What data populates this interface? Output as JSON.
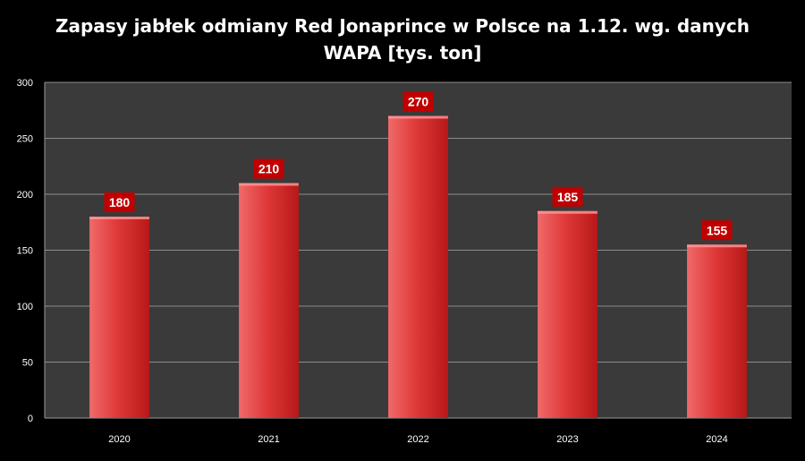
{
  "chart_data": {
    "type": "bar",
    "title": "Zapasy jabłek odmiany Red Jonaprince w Polsce na 1.12. wg. danych WAPA [tys. ton]",
    "categories": [
      "2020",
      "2021",
      "2022",
      "2023",
      "2024"
    ],
    "values": [
      180,
      210,
      270,
      185,
      155
    ],
    "data_labels": [
      "180",
      "210",
      "270",
      "185",
      "155"
    ],
    "xlabel": "",
    "ylabel": "",
    "ylim": [
      0,
      300
    ],
    "yticks": [
      0,
      50,
      100,
      150,
      200,
      250,
      300
    ],
    "grid": true,
    "legend": "none",
    "colors": {
      "page_background": "#000000",
      "plot_background": "#3a3a3a",
      "gridline": "#8c8c8c",
      "bar_light": "#f06a6a",
      "bar_mid": "#e03a3a",
      "bar_dark": "#b81818",
      "label_box": "#c00000",
      "text": "#ffffff"
    }
  }
}
